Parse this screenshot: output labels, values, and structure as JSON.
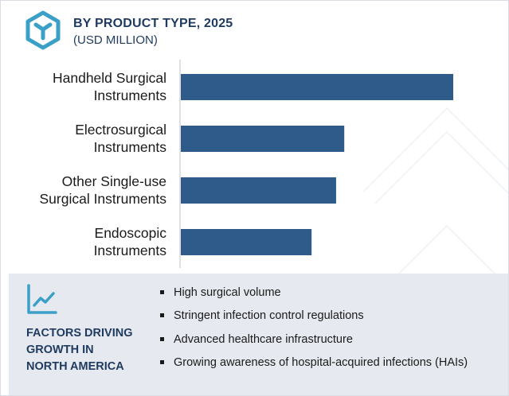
{
  "header": {
    "title": "BY PRODUCT TYPE, 2025",
    "subtitle": "(USD MILLION)",
    "logo_icon": "hexagon-y-logo-icon"
  },
  "chart_data": {
    "type": "bar",
    "orientation": "horizontal",
    "title": "BY PRODUCT TYPE, 2025",
    "subtitle": "(USD MILLION)",
    "categories": [
      [
        "Handheld Surgical",
        "Instruments"
      ],
      [
        "Electrosurgical",
        "Instruments"
      ],
      [
        "Other Single-use",
        "Surgical Instruments"
      ],
      [
        "Endoscopic",
        "Instruments"
      ]
    ],
    "values": [
      100,
      60,
      57,
      48
    ],
    "value_scale": "relative (no axis printed)",
    "bar_color": "#2e5b8a",
    "grid": false,
    "legend": "none"
  },
  "factors": {
    "icon": "trend-line-chart-icon",
    "title_lines": [
      "FACTORS DRIVING",
      "GROWTH IN",
      "NORTH AMERICA"
    ],
    "items": [
      "High surgical volume",
      "Stringent infection control regulations",
      "Advanced healthcare infrastructure",
      "Growing awareness of hospital-acquired infections (HAIs)"
    ]
  },
  "colors": {
    "accent": "#1f3a5f",
    "logo": "#3aa0c8",
    "bar": "#2e5b8a",
    "panel": "#e6eaf0"
  }
}
